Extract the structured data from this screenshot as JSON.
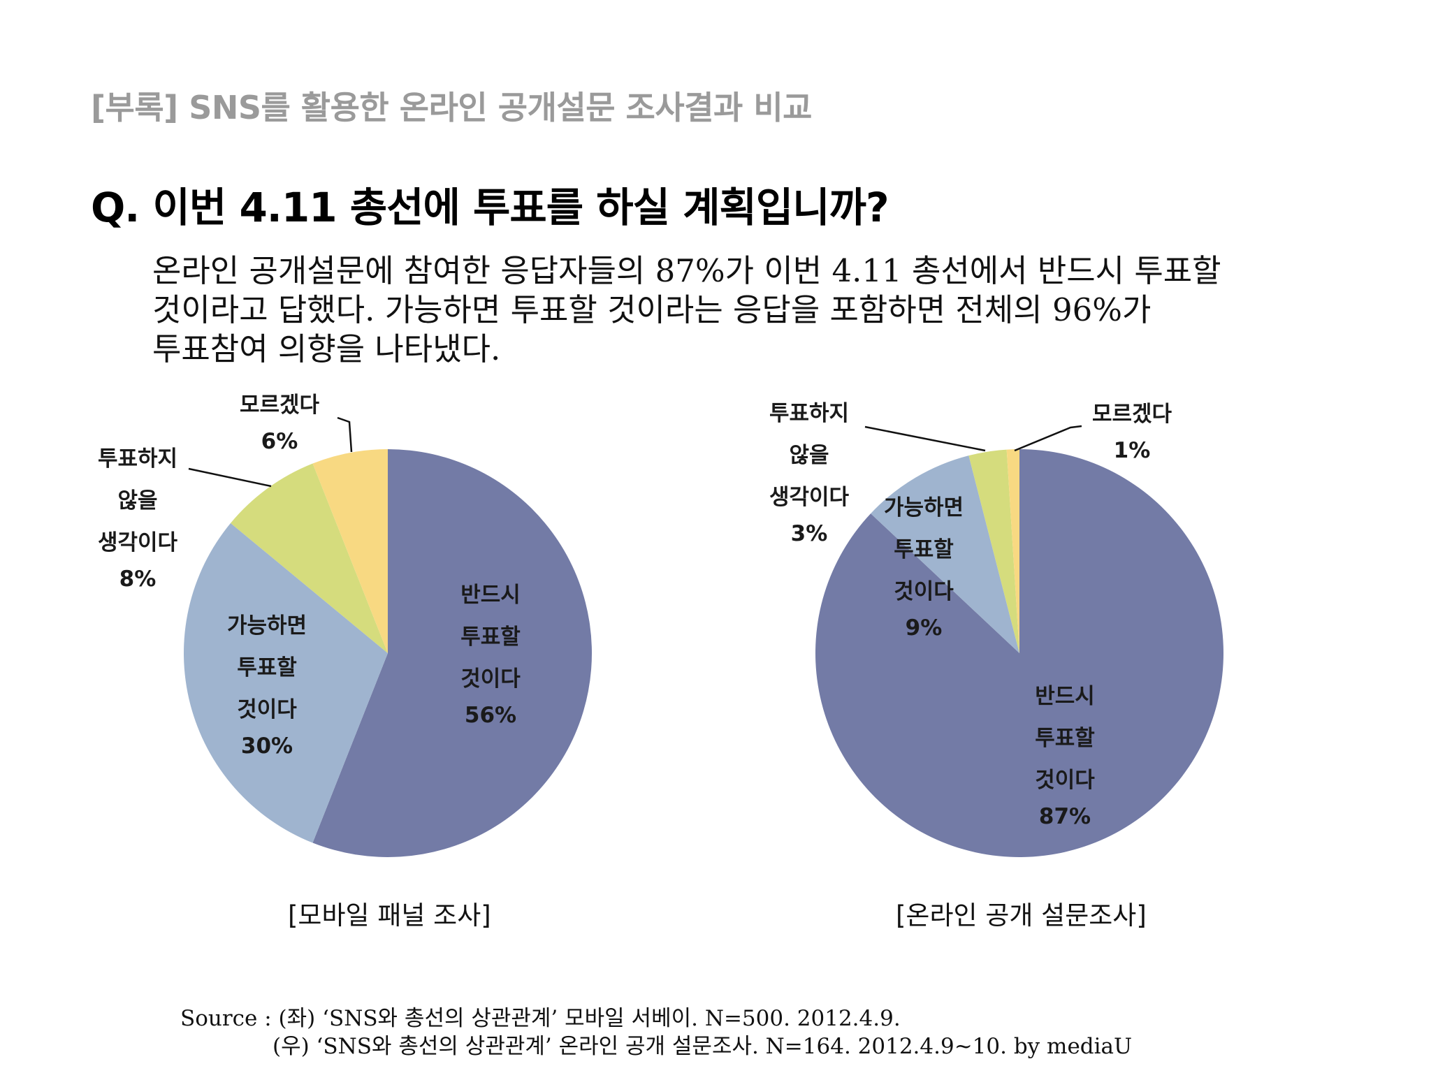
{
  "header": {
    "title": "[부록] SNS를 활용한 온라인 공개설문 조사결과 비교"
  },
  "question": {
    "text": "Q. 이번 4.11 총선에 투표를 하실 계획입니까?"
  },
  "summary": {
    "lines": [
      "온라인 공개설문에 참여한 응답자들의 87%가 이번 4.11 총선에서 반드시 투표할",
      "것이라고 답했다. 가능하면 투표할 것이라는 응답을 포함하면 전체의 96%가",
      "투표참여 의향을 나타냈다."
    ]
  },
  "chart_data": [
    {
      "type": "pie",
      "caption": "[모바일 패널 조사]",
      "slices": [
        {
          "label": "반드시 투표할 것이다",
          "lines": [
            "반드시",
            "투표할",
            "것이다"
          ],
          "value": 56,
          "pct_label": "56%",
          "color": "#737ba6"
        },
        {
          "label": "가능하면 투표할 것이다",
          "lines": [
            "가능하면",
            "투표할",
            "것이다"
          ],
          "value": 30,
          "pct_label": "30%",
          "color": "#9fb4cf"
        },
        {
          "label": "투표하지 않을 생각이다",
          "lines": [
            "투표하지",
            "않을",
            "생각이다"
          ],
          "value": 8,
          "pct_label": "8%",
          "color": "#d5dc7d"
        },
        {
          "label": "모르겠다",
          "lines": [
            "모르겠다"
          ],
          "value": 6,
          "pct_label": "6%",
          "color": "#f8d982"
        }
      ]
    },
    {
      "type": "pie",
      "caption": "[온라인 공개 설문조사]",
      "slices": [
        {
          "label": "반드시 투표할 것이다",
          "lines": [
            "반드시",
            "투표할",
            "것이다"
          ],
          "value": 87,
          "pct_label": "87%",
          "color": "#737ba6"
        },
        {
          "label": "가능하면 투표할 것이다",
          "lines": [
            "가능하면",
            "투표할",
            "것이다"
          ],
          "value": 9,
          "pct_label": "9%",
          "color": "#9fb4cf"
        },
        {
          "label": "투표하지 않을 생각이다",
          "lines": [
            "투표하지",
            "않을",
            "생각이다"
          ],
          "value": 3,
          "pct_label": "3%",
          "color": "#d5dc7d"
        },
        {
          "label": "모르겠다",
          "lines": [
            "모르겠다"
          ],
          "value": 1,
          "pct_label": "1%",
          "color": "#f8d982"
        }
      ]
    }
  ],
  "source": {
    "line1": "Source : (좌) ‘SNS와 총선의 상관관계’ 모바일 서베이. N=500. 2012.4.9.",
    "line2": "(우) ‘SNS와 총선의 상관관계’ 온라인 공개 설문조사. N=164. 2012.4.9~10.   by mediaU"
  }
}
